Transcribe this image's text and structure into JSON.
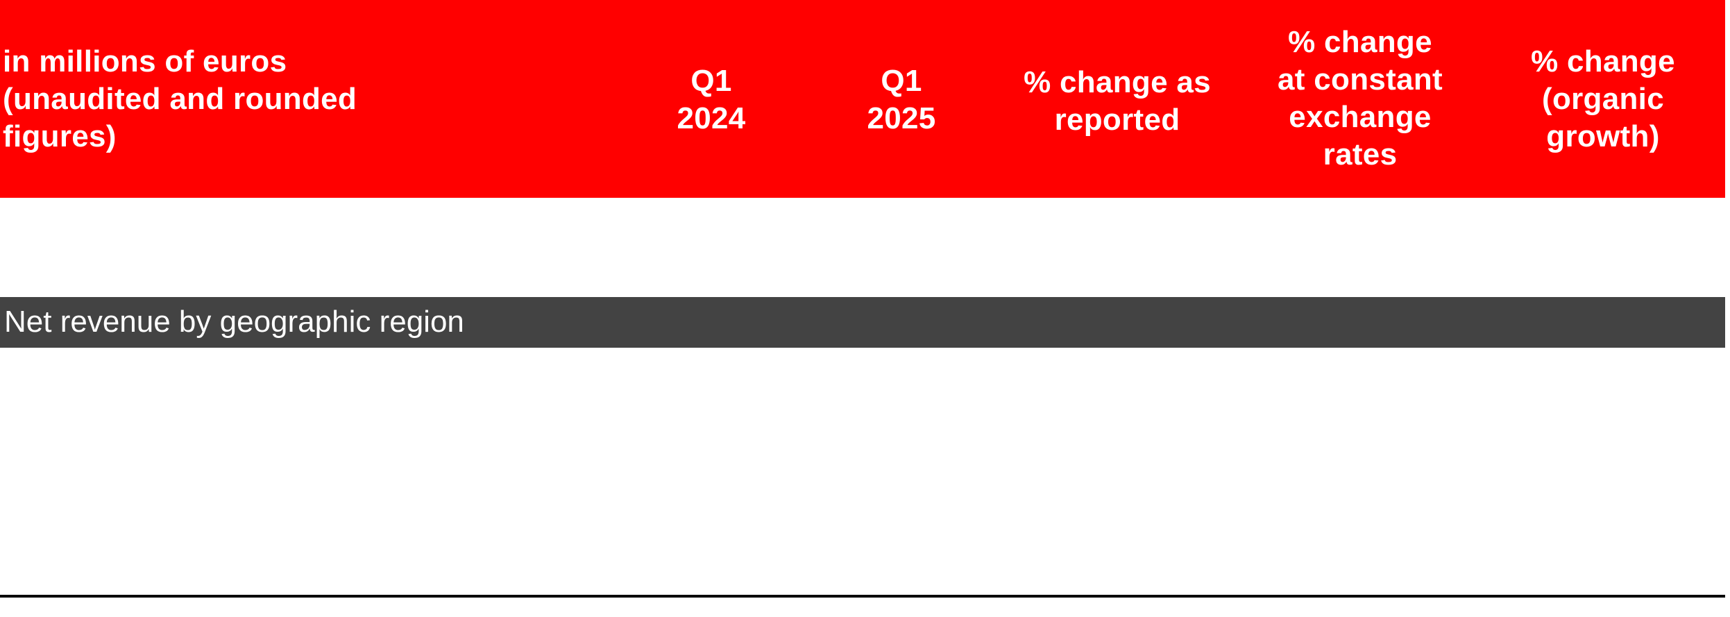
{
  "table": {
    "header": {
      "background": "#ff0000",
      "text_color": "#ffffff",
      "columns": [
        {
          "lines": [
            "in millions of euros",
            "(unaudited and rounded",
            "figures)"
          ]
        },
        {
          "lines": [
            "Q1",
            "2024"
          ]
        },
        {
          "lines": [
            "Q1",
            "2025"
          ]
        },
        {
          "lines": [
            "% change as",
            "reported"
          ]
        },
        {
          "lines": [
            "% change",
            "at constant",
            "exchange",
            "rates"
          ]
        },
        {
          "lines": [
            "% change",
            "(organic",
            "growth)"
          ]
        }
      ]
    },
    "section": {
      "label": "Net revenue by geographic region",
      "background": "#434343"
    }
  }
}
